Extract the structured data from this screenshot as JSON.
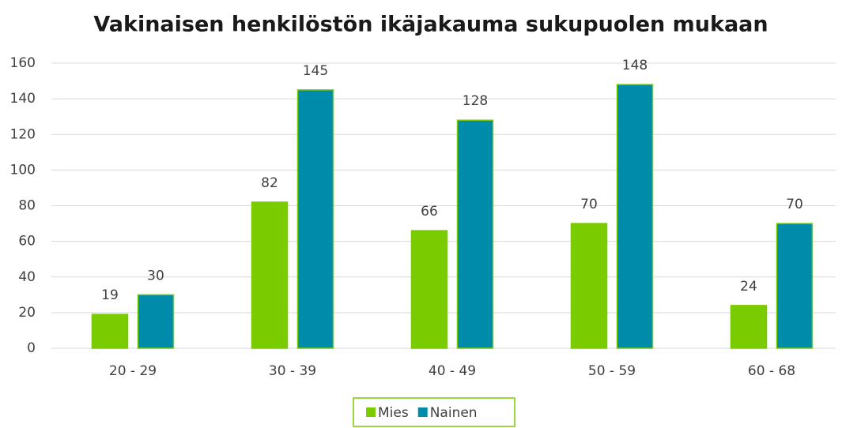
{
  "chart_data": {
    "type": "bar",
    "title": "Vakinaisen henkilöstön ikäjakauma sukupuolen mukaan",
    "categories": [
      "20 - 29",
      "30 - 39",
      "40 - 49",
      "50 - 59",
      "60 - 68"
    ],
    "series": [
      {
        "name": "Mies",
        "color": "#7acc00",
        "values": [
          19,
          82,
          66,
          70,
          24
        ]
      },
      {
        "name": "Nainen",
        "color": "#008bab",
        "values": [
          30,
          145,
          128,
          148,
          70
        ]
      }
    ],
    "ylim": [
      0,
      160
    ],
    "yticks": [
      0,
      20,
      40,
      60,
      80,
      100,
      120,
      140,
      160
    ],
    "grid": true,
    "legend": "bottom"
  }
}
